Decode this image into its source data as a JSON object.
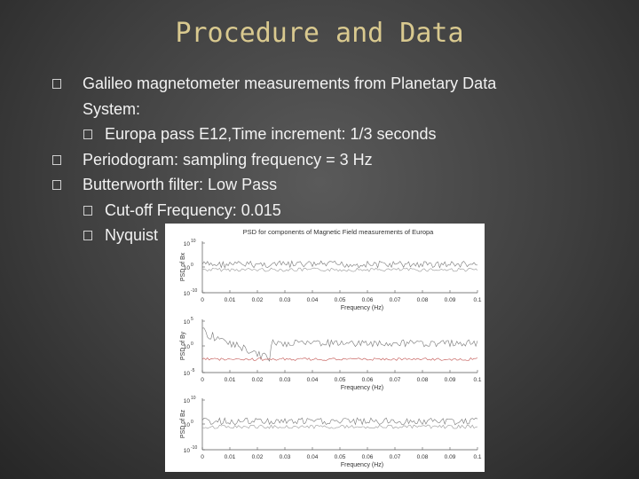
{
  "slide": {
    "title": "Procedure and Data",
    "bullets": [
      {
        "text": "Galileo magnetometer measurements from Planetary Data",
        "level": 1,
        "icon": "box-icon"
      },
      {
        "text": "System:",
        "level": 1,
        "continuation": true
      },
      {
        "text": "Europa pass E12,Time increment: 1/3 seconds",
        "level": 2,
        "icon": "box-icon"
      },
      {
        "text": "Periodogram:  sampling frequency = 3 Hz",
        "level": 1,
        "icon": "box-icon"
      },
      {
        "text": "Butterworth filter:  Low Pass",
        "level": 1,
        "icon": "box-icon"
      },
      {
        "text": "Cut-off Frequency:  0.015",
        "level": 2,
        "icon": "box-icon"
      },
      {
        "text": "Nyquist",
        "level": 2,
        "icon": "box-icon"
      }
    ]
  },
  "chart_data": {
    "type": "line",
    "title": "PSD for components of Magnetic Field measurements of Europa",
    "panels": [
      {
        "ylabel": "PSD of Bx",
        "yticks": [
          "10",
          "10",
          "10"
        ],
        "ytick_exponents": [
          "10",
          "0",
          "-10"
        ],
        "xlabel": "Frequency (Hz)"
      },
      {
        "ylabel": "PSD of By",
        "yticks": [
          "10",
          "10",
          "10"
        ],
        "ytick_exponents": [
          "5",
          "0",
          "-5"
        ],
        "xlabel": "Frequency (Hz)"
      },
      {
        "ylabel": "PSD of Bz",
        "yticks": [
          "10",
          "10",
          "10"
        ],
        "ytick_exponents": [
          "10",
          "0",
          "-10"
        ],
        "xlabel": "Frequency (Hz)"
      }
    ],
    "xticks": [
      "0",
      "0.01",
      "0.02",
      "0.03",
      "0.04",
      "0.05",
      "0.06",
      "0.07",
      "0.08",
      "0.09",
      "0.1"
    ],
    "xlim": [
      0,
      0.1
    ]
  }
}
